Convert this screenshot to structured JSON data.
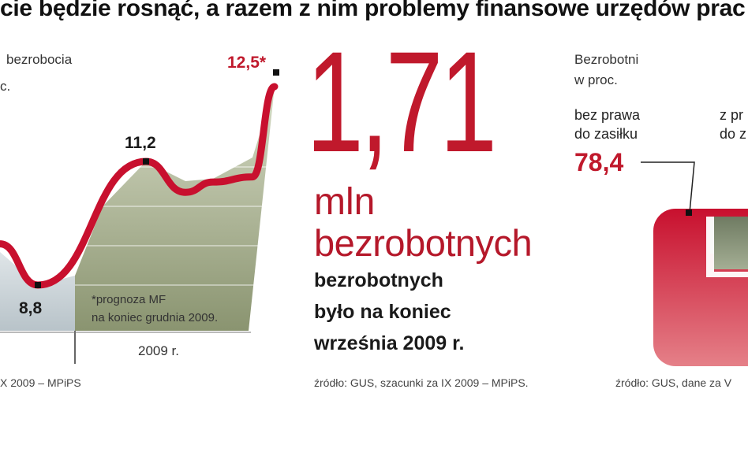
{
  "headline": "cie będzie rosnąć, a razem z nim problemy finansowe urzędów prac",
  "left_chart": {
    "title_line1": "bezrobocia",
    "title_line2": "c.",
    "note_line1": "*prognoza MF",
    "note_line2": "na koniec grudnia 2009.",
    "x_axis_label": "2009 r.",
    "source": "X 2009 – MPiPS",
    "line_color": "#c8102e"
  },
  "chart_data": {
    "type": "line",
    "title": "",
    "xlabel": "2009 r.",
    "ylabel": "",
    "points": [
      {
        "label": "",
        "value": null
      },
      {
        "label": "8,8",
        "value": 8.8
      },
      {
        "label": "11,2",
        "value": 11.2
      },
      {
        "label": "",
        "value": null
      },
      {
        "label": "",
        "value": null
      },
      {
        "label": "",
        "value": null
      },
      {
        "label": "12,5*",
        "value": 12.5
      }
    ],
    "labeled_values": [
      "8,8",
      "11,2",
      "12,5*"
    ],
    "values": [
      9.6,
      8.8,
      11.2,
      10.6,
      10.8,
      10.9,
      12.5
    ]
  },
  "center": {
    "big_number": "1,71",
    "unit": "mln",
    "unit_desc": "bezrobotnych",
    "desc_line1": "bezrobotnych",
    "desc_line2": "było na koniec",
    "desc_line3": "września 2009 r.",
    "source": "źródło: GUS, szacunki za IX 2009 – MPiPS.",
    "color": "#c0192c"
  },
  "right_chart": {
    "title_line1": "Bezrobotni",
    "title_line2": "w proc.",
    "cat1_line1": "bez prawa",
    "cat1_line2": "do zasiłku",
    "cat2_line1": "z pr",
    "cat2_line2": "do z",
    "value1": "78,4",
    "source": "źródło: GUS, dane za V",
    "pie_data": {
      "type": "pie",
      "slices": [
        {
          "name": "bez prawa do zasiłku",
          "value": 78.4,
          "color": "#c8102e"
        },
        {
          "name": "z prawem do zasiłku",
          "value": 21.6,
          "color": "#7d8a70"
        }
      ]
    }
  }
}
